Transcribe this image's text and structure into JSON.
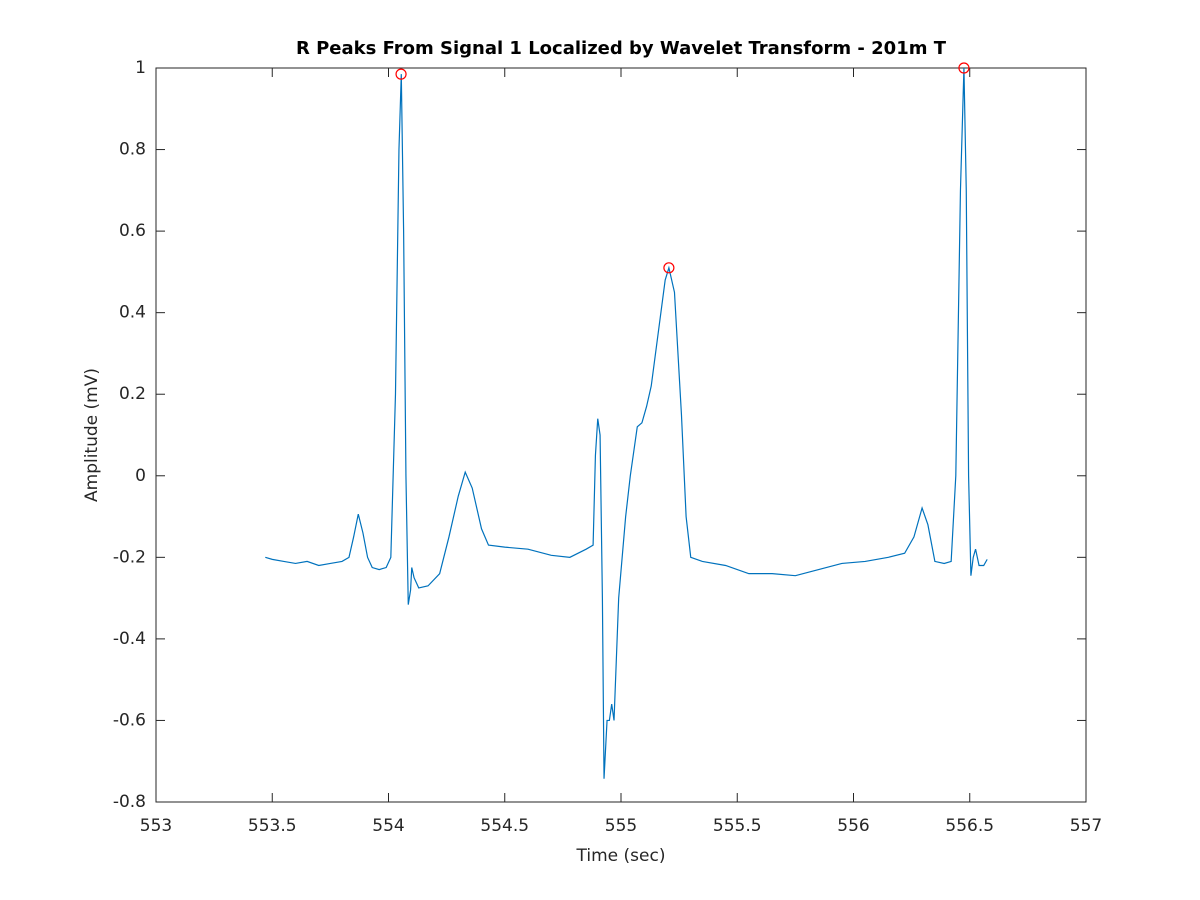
{
  "chart_data": {
    "type": "line",
    "title": "R Peaks From Signal 1 Localized by Wavelet Transform - 201m T",
    "x_label": "Time (sec)",
    "y_label": "Amplitude (mV)",
    "xlim": [
      553,
      557
    ],
    "xticks": [
      553,
      553.5,
      554,
      554.5,
      555,
      555.5,
      556,
      556.5,
      557
    ],
    "ylim": [
      -0.8,
      1
    ],
    "yticks": [
      -0.8,
      -0.6,
      -0.4,
      -0.2,
      0,
      0.2,
      0.4,
      0.6,
      0.8,
      1
    ],
    "series": [
      {
        "color": "#0072bd",
        "x": [
          553.47,
          553.5,
          553.55,
          553.6,
          553.65,
          553.7,
          553.75,
          553.8,
          553.83,
          553.85,
          553.87,
          553.89,
          553.91,
          553.93,
          553.96,
          553.99,
          554.01,
          554.03,
          554.045,
          554.055,
          554.065,
          554.075,
          554.085,
          554.095,
          554.1,
          554.11,
          554.13,
          554.17,
          554.22,
          554.26,
          554.3,
          554.33,
          554.36,
          554.4,
          554.43,
          554.5,
          554.6,
          554.7,
          554.78,
          554.85,
          554.88,
          554.89,
          554.9,
          554.91,
          554.92,
          554.927,
          554.94,
          554.95,
          554.96,
          554.97,
          554.98,
          554.99,
          555.02,
          555.04,
          555.07,
          555.09,
          555.11,
          555.13,
          555.16,
          555.19,
          555.206,
          555.23,
          555.26,
          555.28,
          555.3,
          555.35,
          555.45,
          555.55,
          555.65,
          555.75,
          555.85,
          555.95,
          556.05,
          556.15,
          556.22,
          556.26,
          556.295,
          556.32,
          556.35,
          556.39,
          556.42,
          556.44,
          556.46,
          556.475,
          556.485,
          556.495,
          556.505,
          556.515,
          556.525,
          556.54,
          556.56,
          556.575
        ],
        "values": [
          -0.2,
          -0.205,
          -0.21,
          -0.215,
          -0.21,
          -0.22,
          -0.215,
          -0.21,
          -0.2,
          -0.15,
          -0.094,
          -0.14,
          -0.2,
          -0.225,
          -0.23,
          -0.225,
          -0.2,
          0.2,
          0.8,
          0.985,
          0.6,
          0,
          -0.316,
          -0.28,
          -0.225,
          -0.25,
          -0.275,
          -0.27,
          -0.24,
          -0.15,
          -0.05,
          0.009,
          -0.03,
          -0.13,
          -0.17,
          -0.175,
          -0.18,
          -0.195,
          -0.2,
          -0.18,
          -0.17,
          0.05,
          0.14,
          0.1,
          -0.3,
          -0.743,
          -0.6,
          -0.6,
          -0.56,
          -0.6,
          -0.45,
          -0.3,
          -0.1,
          0,
          0.12,
          0.13,
          0.17,
          0.22,
          0.35,
          0.48,
          0.51,
          0.45,
          0.15,
          -0.1,
          -0.2,
          -0.21,
          -0.22,
          -0.24,
          -0.24,
          -0.245,
          -0.23,
          -0.215,
          -0.21,
          -0.2,
          -0.19,
          -0.15,
          -0.079,
          -0.12,
          -0.21,
          -0.215,
          -0.21,
          0,
          0.7,
          1,
          0.7,
          0,
          -0.245,
          -0.2,
          -0.18,
          -0.22,
          -0.22,
          -0.205
        ]
      },
      {
        "type": "scatter",
        "color": "#ff0000",
        "x": [
          554.054,
          555.206,
          556.475
        ],
        "values": [
          0.985,
          0.51,
          1
        ]
      }
    ]
  }
}
